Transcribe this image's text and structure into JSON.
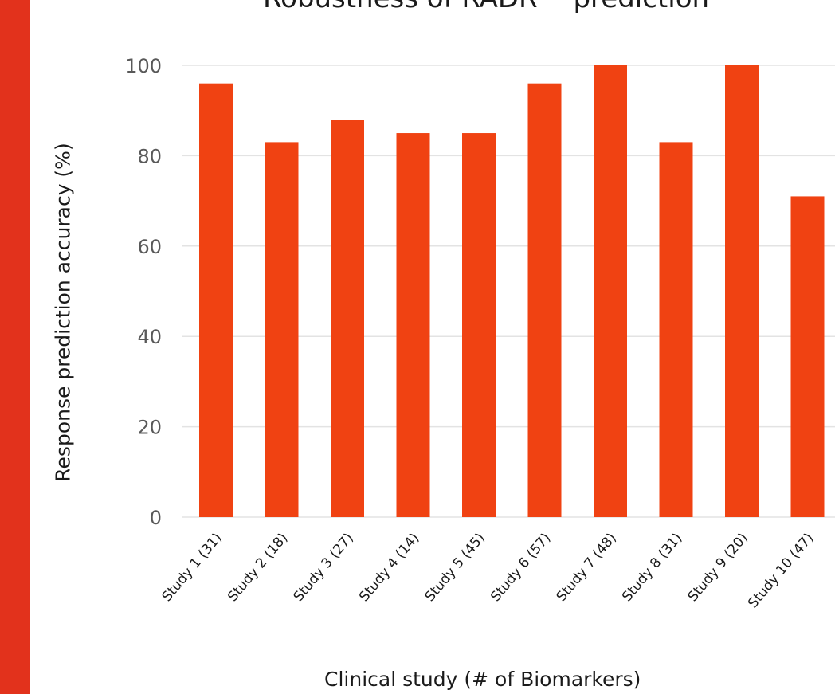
{
  "chart_data": {
    "type": "bar",
    "title": "Robustness of RADR™ prediction",
    "xlabel": "Clinical study (# of Biomarkers)",
    "ylabel": "Response prediction accuracy (%)",
    "categories": [
      "Study 1 (31)",
      "Study 2 (18)",
      "Study 3 (27)",
      "Study 4 (14)",
      "Study 5 (45)",
      "Study 6 (57)",
      "Study 7 (48)",
      "Study 8 (31)",
      "Study 9 (20)",
      "Study 10 (47)"
    ],
    "values": [
      96,
      83,
      88,
      85,
      85,
      96,
      100,
      83,
      100,
      71
    ],
    "ylim": [
      0,
      100
    ],
    "yticks": [
      "0",
      "20",
      "40",
      "60",
      "80",
      "100"
    ],
    "grid": true,
    "colors": {
      "bar": "#f04212",
      "grid": "#e3e3e3",
      "stripe": "#e2321c",
      "text": "#595959"
    }
  }
}
